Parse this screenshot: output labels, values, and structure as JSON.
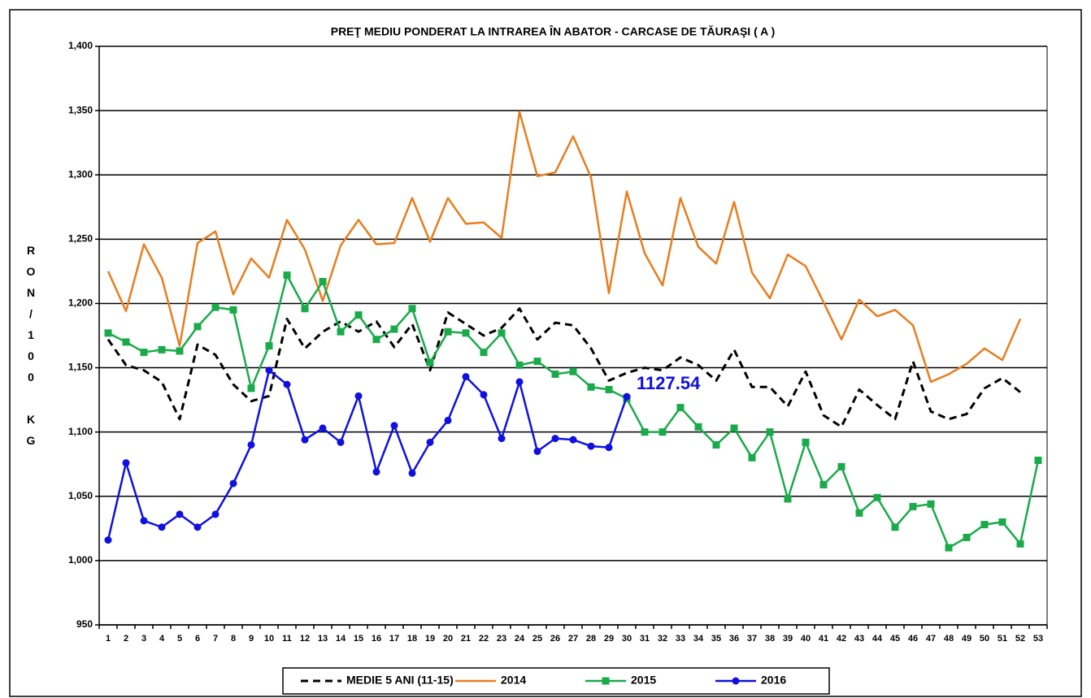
{
  "chart_data": {
    "type": "line",
    "title": "PREŢ MEDIU PONDERAT LA INTRAREA ÎN ABATOR - CARCASE DE TĂURAŞI ( A )",
    "y_label": "RON/100 KG",
    "categories": [
      "1",
      "2",
      "3",
      "4",
      "5",
      "6",
      "7",
      "8",
      "9",
      "10",
      "11",
      "12",
      "13",
      "14",
      "15",
      "16",
      "17",
      "18",
      "19",
      "20",
      "21",
      "22",
      "23",
      "24",
      "25",
      "26",
      "27",
      "28",
      "29",
      "30",
      "31",
      "32",
      "33",
      "34",
      "35",
      "36",
      "37",
      "38",
      "39",
      "40",
      "41",
      "42",
      "43",
      "44",
      "45",
      "46",
      "47",
      "48",
      "49",
      "50",
      "51",
      "52",
      "53"
    ],
    "ylim": [
      950,
      1400
    ],
    "yticks": [
      {
        "value": 950,
        "label": "950"
      },
      {
        "value": 1000,
        "label": "1,000"
      },
      {
        "value": 1050,
        "label": "1,050"
      },
      {
        "value": 1100,
        "label": "1,100"
      },
      {
        "value": 1150,
        "label": "1,150"
      },
      {
        "value": 1200,
        "label": "1,200"
      },
      {
        "value": 1250,
        "label": "1,250"
      },
      {
        "value": 1300,
        "label": "1,300"
      },
      {
        "value": 1350,
        "label": "1,350"
      },
      {
        "value": 1400,
        "label": "1,400"
      }
    ],
    "grid": true,
    "legend": "bottom",
    "series": [
      {
        "name": "MEDIE 5 ANI (11-15)",
        "color": "#000000",
        "line_style": "dashed",
        "marker": "none",
        "values": [
          1172,
          1152,
          1148,
          1139,
          1110,
          1168,
          1160,
          1137,
          1124,
          1128,
          1188,
          1165,
          1178,
          1186,
          1178,
          1186,
          1166,
          1184,
          1148,
          1193,
          1184,
          1175,
          1181,
          1196,
          1172,
          1185,
          1183,
          1165,
          1140,
          1146,
          1150,
          1148,
          1158,
          1152,
          1140,
          1164,
          1135,
          1135,
          1120,
          1147,
          1113,
          1104,
          1133,
          1121,
          1110,
          1155,
          1116,
          1110,
          1114,
          1134,
          1142,
          1131,
          null
        ]
      },
      {
        "name": "2014",
        "color": "#e87d1e",
        "line_style": "solid",
        "marker": "none",
        "values": [
          1225,
          1194,
          1246,
          1220,
          1167,
          1247,
          1256,
          1207,
          1235,
          1220,
          1265,
          1242,
          1202,
          1245,
          1265,
          1246,
          1247,
          1282,
          1248,
          1282,
          1262,
          1263,
          1251,
          1349,
          1299,
          1302,
          1330,
          1298,
          1208,
          1287,
          1239,
          1214,
          1282,
          1244,
          1231,
          1279,
          1224,
          1204,
          1238,
          1229,
          1201,
          1172,
          1203,
          1190,
          1195,
          1183,
          1139,
          1145,
          1153,
          1165,
          1156,
          1188,
          null
        ]
      },
      {
        "name": "2015",
        "color": "#1aaa4a",
        "line_style": "solid",
        "marker": "square",
        "values": [
          1177,
          1170,
          1162,
          1164,
          1163,
          1182,
          1197,
          1195,
          1134,
          1167,
          1222,
          1196,
          1217,
          1178,
          1191,
          1172,
          1180,
          1196,
          1154,
          1178,
          1177,
          1162,
          1177,
          1152,
          1155,
          1145,
          1147,
          1135,
          1133,
          1126,
          1100,
          1100,
          1119,
          1104,
          1090,
          1103,
          1080,
          1100,
          1048,
          1092,
          1059,
          1073,
          1037,
          1049,
          1026,
          1042,
          1044,
          1010,
          1018,
          1028,
          1030,
          1013,
          1078
        ]
      },
      {
        "name": "2016",
        "color": "#1010e0",
        "line_style": "solid",
        "marker": "circle",
        "values": [
          1016,
          1076,
          1031,
          1026,
          1036,
          1026,
          1036,
          1060,
          1090,
          1148,
          1137,
          1094,
          1103,
          1092,
          1128,
          1069,
          1105,
          1068,
          1092,
          1109,
          1143,
          1129,
          1095,
          1139,
          1085,
          1095,
          1094,
          1089,
          1088,
          1127.54,
          null,
          null,
          null,
          null,
          null,
          null,
          null,
          null,
          null,
          null,
          null,
          null,
          null,
          null,
          null,
          null,
          null,
          null,
          null,
          null,
          null,
          null,
          null
        ]
      }
    ],
    "annotation": {
      "series": 3,
      "index": 29
    }
  }
}
